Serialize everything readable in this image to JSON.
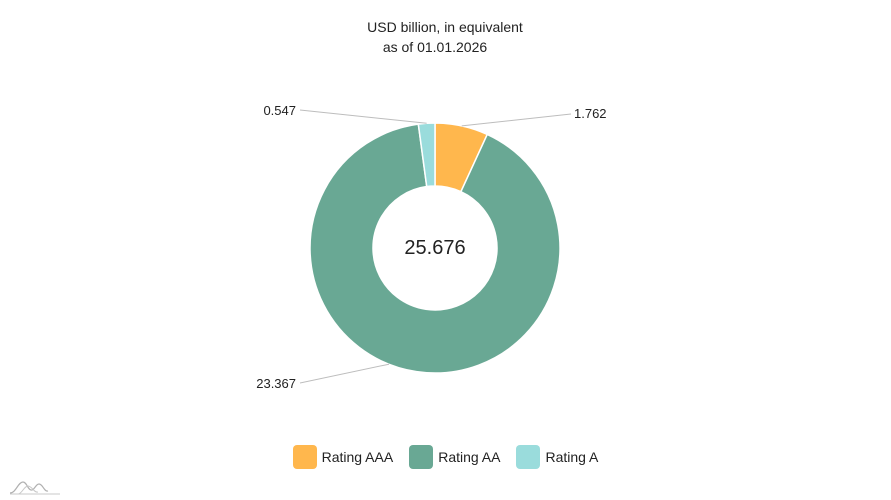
{
  "chart_data": {
    "type": "pie",
    "variant": "donut",
    "title_lines": [
      "USD billion, in equivalent",
      "as of 01.01.2026"
    ],
    "center_label": "25.676",
    "categories": [
      "Rating AAA",
      "Rating AA",
      "Rating A"
    ],
    "values": [
      1.762,
      23.367,
      0.547
    ],
    "value_labels": [
      "1.762",
      "23.367",
      "0.547"
    ],
    "colors": [
      "#FFB74D",
      "#69A894",
      "#9ADCDC"
    ],
    "legend_placement": "bottom-center"
  },
  "legend": {
    "items": [
      {
        "label": "Rating AAA",
        "color": "#FFB74D"
      },
      {
        "label": "Rating AA",
        "color": "#69A894"
      },
      {
        "label": "Rating A",
        "color": "#9ADCDC"
      }
    ]
  }
}
